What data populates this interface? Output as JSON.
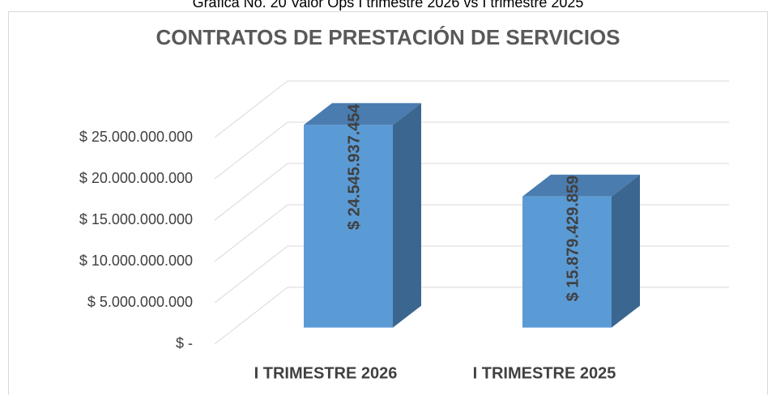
{
  "caption": "Gráfica No. 20 Valor Ops I trimestre 2026 vs I trimestre 2025",
  "chart_data": {
    "type": "bar3d",
    "title": "CONTRATOS DE PRESTACIÓN DE SERVICIOS",
    "categories": [
      "I TRIMESTRE 2026",
      "I TRIMESTRE 2025"
    ],
    "values": [
      24545937454,
      15879429859
    ],
    "value_labels": [
      "$ 24.545.937.454",
      "$ 15.879.429.859"
    ],
    "color": "#5b9bd5",
    "ylim": [
      0,
      25000000000
    ],
    "yticks": [
      {
        "value": 0,
        "label": "$ -"
      },
      {
        "value": 5000000000,
        "label": "$ 5.000.000.000"
      },
      {
        "value": 10000000000,
        "label": "$ 10.000.000.000"
      },
      {
        "value": 15000000000,
        "label": "$ 15.000.000.000"
      },
      {
        "value": 20000000000,
        "label": "$ 20.000.000.000"
      },
      {
        "value": 25000000000,
        "label": "$ 25.000.000.000"
      }
    ],
    "grid": true
  }
}
